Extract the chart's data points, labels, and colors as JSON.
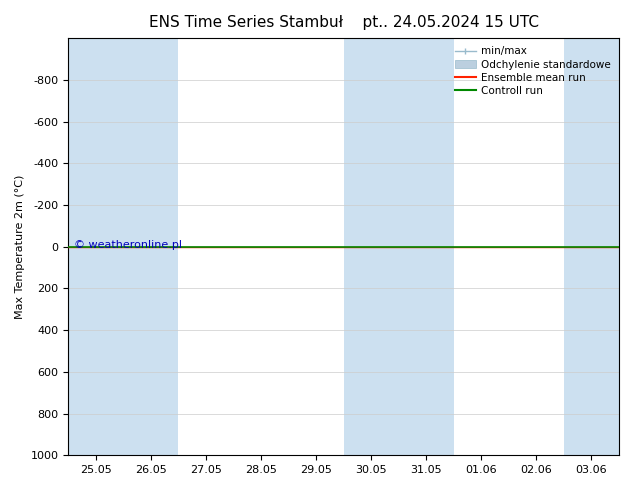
{
  "title_left": "ENS Time Series Stambuł",
  "title_right": "pt.. 24.05.2024 15 UTC",
  "ylabel": "Max Temperature 2m (°C)",
  "ylim_bottom": -1000,
  "ylim_top": 1000,
  "yticks": [
    -800,
    -600,
    -400,
    -200,
    0,
    200,
    400,
    600,
    800,
    1000
  ],
  "xtick_labels": [
    "25.05",
    "26.05",
    "27.05",
    "28.05",
    "29.05",
    "30.05",
    "31.05",
    "01.06",
    "02.06",
    "03.06"
  ],
  "xtick_positions": [
    0,
    1,
    2,
    3,
    4,
    5,
    6,
    7,
    8,
    9
  ],
  "shaded_columns": [
    0,
    1,
    5,
    6,
    9
  ],
  "shade_color": "#cce0f0",
  "green_line_y": 0,
  "red_line_y": 0,
  "green_color": "#008800",
  "red_color": "#ff2200",
  "minmax_color": "#99bbcc",
  "std_color": "#bbcfdf",
  "watermark": "© weatheronline.pl",
  "watermark_color": "#0000bb",
  "background_color": "#ffffff",
  "legend_items": [
    "min/max",
    "Odchylenie standardowe",
    "Ensemble mean run",
    "Controll run"
  ]
}
